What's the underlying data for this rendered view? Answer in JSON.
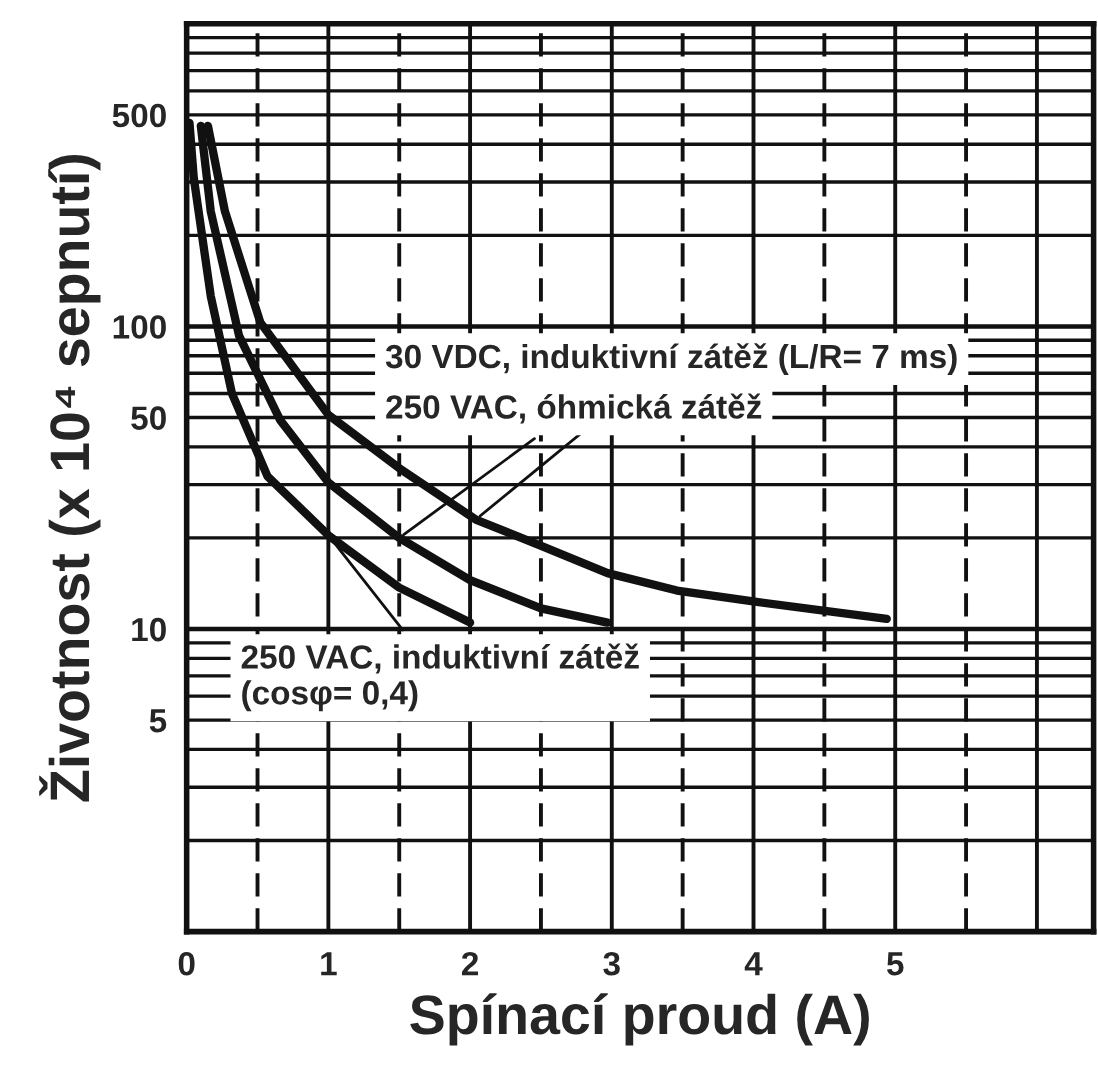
{
  "chart_data": {
    "type": "line",
    "xlabel": "Spínací proud (A)",
    "ylabel": "Životnost (x 10⁴ sepnutí)",
    "log": "y",
    "xlim": [
      0,
      6.4
    ],
    "ylim": [
      1,
      1000
    ],
    "xticks": [
      0,
      1,
      2,
      3,
      4,
      5
    ],
    "yticks": [
      5,
      10,
      50,
      100,
      500
    ],
    "grid": true,
    "legend": false,
    "marker": "none",
    "line_style": "solid",
    "series": [
      {
        "name": "30 VDC, induktivní zátěž (L/R= 7 ms)",
        "color": "#111111",
        "x": [
          0.15,
          0.27,
          0.52,
          1.0,
          1.5,
          2.04,
          2.48,
          2.97,
          3.46,
          3.96,
          4.94
        ],
        "values": [
          460,
          240,
          103,
          51,
          34,
          23,
          19,
          15.3,
          13.4,
          12.4,
          10.8
        ]
      },
      {
        "name": "250 VAC, óhmická zátěž",
        "color": "#111111",
        "x": [
          0.1,
          0.17,
          0.37,
          0.66,
          1.0,
          1.5,
          2.0,
          2.5,
          2.97
        ],
        "values": [
          460,
          240,
          93,
          49,
          30.5,
          20,
          14.5,
          11.7,
          10.5
        ]
      },
      {
        "name": "250 VAC, induktivní zátěž\n(cosφ= 0,4)",
        "color": "#111111",
        "x": [
          0.02,
          0.05,
          0.17,
          0.32,
          0.57,
          1.0,
          1.5,
          2.0
        ],
        "values": [
          470,
          310,
          126,
          60,
          32,
          20.4,
          13.7,
          10.5
        ]
      }
    ]
  }
}
